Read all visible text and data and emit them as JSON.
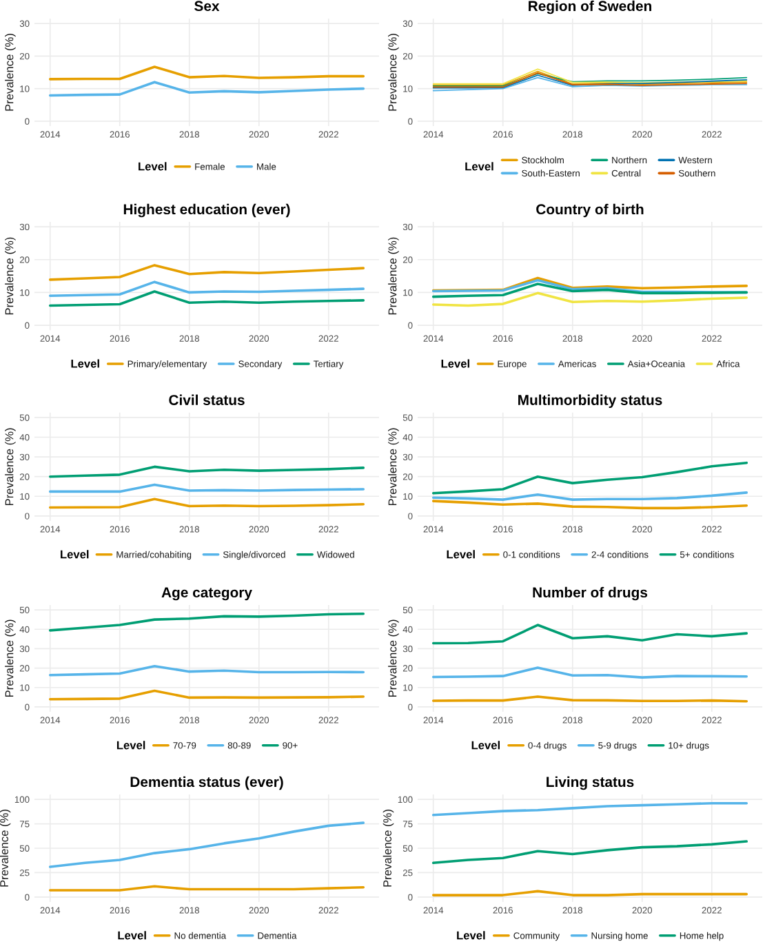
{
  "chart_data": [
    {
      "type": "line",
      "title": "Sex",
      "ylabel": "Prevalence (%)",
      "legend_title": "Level",
      "legend": "bottom",
      "grid": true,
      "x": [
        2014,
        2015,
        2016,
        2017,
        2018,
        2019,
        2020,
        2021,
        2022,
        2023
      ],
      "xlim": [
        2013.55,
        2023.45
      ],
      "xticks": [
        2014,
        2016,
        2018,
        2020,
        2022
      ],
      "ylim": [
        -1.5,
        31.5
      ],
      "yticks": [
        0,
        10,
        20,
        30
      ],
      "series": [
        {
          "name": "Female",
          "color": "#E69F00",
          "values": [
            12.9,
            13.0,
            13.0,
            16.7,
            13.5,
            13.9,
            13.3,
            13.5,
            13.8,
            13.8
          ]
        },
        {
          "name": "Male",
          "color": "#56B4E9",
          "values": [
            7.9,
            8.1,
            8.2,
            12.0,
            8.8,
            9.2,
            8.9,
            9.3,
            9.7,
            10.0
          ]
        }
      ]
    },
    {
      "type": "line",
      "title": "Region of Sweden",
      "ylabel": "Prevalence (%)",
      "legend_title": "Level",
      "legend": "bottom",
      "grid": true,
      "x": [
        2014,
        2015,
        2016,
        2017,
        2018,
        2019,
        2020,
        2021,
        2022,
        2023
      ],
      "xlim": [
        2013.55,
        2023.45
      ],
      "xticks": [
        2014,
        2016,
        2018,
        2020,
        2022
      ],
      "ylim": [
        -1.5,
        31.5
      ],
      "yticks": [
        0,
        10,
        20,
        30
      ],
      "series": [
        {
          "name": "Stockholm",
          "color": "#E69F00",
          "values": [
            11.1,
            11.1,
            11.1,
            15.3,
            11.4,
            11.7,
            11.4,
            11.6,
            11.8,
            12.0
          ]
        },
        {
          "name": "South-Eastern",
          "color": "#56B4E9",
          "values": [
            9.4,
            9.7,
            10.0,
            13.4,
            10.6,
            11.0,
            10.8,
            11.0,
            11.2,
            11.2
          ]
        },
        {
          "name": "Northern",
          "color": "#009E73",
          "values": [
            10.8,
            10.8,
            10.8,
            14.6,
            12.1,
            12.4,
            12.4,
            12.6,
            12.9,
            13.4
          ]
        },
        {
          "name": "Central",
          "color": "#F0E442",
          "values": [
            11.5,
            11.5,
            11.5,
            16.0,
            11.9,
            12.0,
            11.8,
            12.0,
            12.2,
            12.4
          ]
        },
        {
          "name": "Western",
          "color": "#0072B2",
          "values": [
            10.2,
            10.2,
            10.3,
            14.1,
            11.0,
            11.5,
            11.6,
            11.9,
            12.3,
            12.7
          ]
        },
        {
          "name": "Southern",
          "color": "#D55E00",
          "values": [
            10.5,
            10.5,
            10.5,
            14.8,
            11.2,
            11.3,
            11.0,
            11.2,
            11.4,
            11.6
          ]
        }
      ]
    },
    {
      "type": "line",
      "title": "Highest education (ever)",
      "ylabel": "Prevalence (%)",
      "legend_title": "Level",
      "legend": "bottom",
      "grid": true,
      "x": [
        2014,
        2015,
        2016,
        2017,
        2018,
        2019,
        2020,
        2021,
        2022,
        2023
      ],
      "xlim": [
        2013.55,
        2023.45
      ],
      "xticks": [
        2014,
        2016,
        2018,
        2020,
        2022
      ],
      "ylim": [
        -1.5,
        31.5
      ],
      "yticks": [
        0,
        10,
        20,
        30
      ],
      "series": [
        {
          "name": "Primary/elementary",
          "color": "#E69F00",
          "values": [
            13.9,
            14.3,
            14.7,
            18.3,
            15.6,
            16.2,
            15.9,
            16.4,
            16.9,
            17.4
          ]
        },
        {
          "name": "Secondary",
          "color": "#56B4E9",
          "values": [
            9.0,
            9.2,
            9.4,
            13.2,
            10.0,
            10.3,
            10.2,
            10.5,
            10.8,
            11.1
          ]
        },
        {
          "name": "Tertiary",
          "color": "#009E73",
          "values": [
            6.0,
            6.2,
            6.4,
            10.3,
            6.9,
            7.2,
            6.9,
            7.2,
            7.4,
            7.6
          ]
        }
      ]
    },
    {
      "type": "line",
      "title": "Country of birth",
      "ylabel": "Prevalence (%)",
      "legend_title": "Level",
      "legend": "bottom",
      "grid": true,
      "x": [
        2014,
        2015,
        2016,
        2017,
        2018,
        2019,
        2020,
        2021,
        2022,
        2023
      ],
      "xlim": [
        2013.55,
        2023.45
      ],
      "xticks": [
        2014,
        2016,
        2018,
        2020,
        2022
      ],
      "ylim": [
        -1.5,
        31.5
      ],
      "yticks": [
        0,
        10,
        20,
        30
      ],
      "series": [
        {
          "name": "Europe",
          "color": "#E69F00",
          "values": [
            10.6,
            10.7,
            10.8,
            14.4,
            11.4,
            11.8,
            11.3,
            11.5,
            11.8,
            12.0
          ]
        },
        {
          "name": "Americas",
          "color": "#56B4E9",
          "values": [
            10.4,
            10.5,
            10.6,
            13.7,
            11.0,
            11.3,
            10.2,
            10.2,
            10.1,
            10.0
          ]
        },
        {
          "name": "Asia+Oceania",
          "color": "#009E73",
          "values": [
            8.7,
            9.0,
            9.2,
            12.6,
            10.4,
            10.8,
            9.8,
            9.8,
            9.9,
            10.0
          ]
        },
        {
          "name": "Africa",
          "color": "#F0E442",
          "values": [
            6.3,
            6.0,
            6.5,
            9.8,
            7.1,
            7.4,
            7.2,
            7.6,
            8.1,
            8.4
          ]
        }
      ]
    },
    {
      "type": "line",
      "title": "Civil status",
      "ylabel": "Prevalence (%)",
      "legend_title": "Level",
      "legend": "bottom",
      "grid": true,
      "x": [
        2014,
        2015,
        2016,
        2017,
        2018,
        2019,
        2020,
        2021,
        2022,
        2023
      ],
      "xlim": [
        2013.55,
        2023.45
      ],
      "xticks": [
        2014,
        2016,
        2018,
        2020,
        2022
      ],
      "ylim": [
        -2.5,
        52.5
      ],
      "yticks": [
        0,
        10,
        20,
        30,
        40,
        50
      ],
      "series": [
        {
          "name": "Married/cohabiting",
          "color": "#E69F00",
          "values": [
            4.3,
            4.4,
            4.5,
            8.6,
            5.0,
            5.3,
            5.0,
            5.2,
            5.5,
            6.0
          ]
        },
        {
          "name": "Single/divorced",
          "color": "#56B4E9",
          "values": [
            12.4,
            12.4,
            12.4,
            15.9,
            12.9,
            13.1,
            12.9,
            13.2,
            13.4,
            13.6
          ]
        },
        {
          "name": "Widowed",
          "color": "#009E73",
          "values": [
            20.0,
            20.5,
            21.0,
            25.0,
            22.7,
            23.5,
            23.0,
            23.4,
            23.8,
            24.5
          ]
        }
      ]
    },
    {
      "type": "line",
      "title": "Multimorbidity status",
      "ylabel": "Prevalence (%)",
      "legend_title": "Level",
      "legend": "bottom",
      "grid": true,
      "x": [
        2014,
        2015,
        2016,
        2017,
        2018,
        2019,
        2020,
        2021,
        2022,
        2023
      ],
      "xlim": [
        2013.55,
        2023.45
      ],
      "xticks": [
        2014,
        2016,
        2018,
        2020,
        2022
      ],
      "ylim": [
        -2.5,
        52.5
      ],
      "yticks": [
        0,
        10,
        20,
        30,
        40,
        50
      ],
      "series": [
        {
          "name": "0-1 conditions",
          "color": "#E69F00",
          "values": [
            7.6,
            6.8,
            5.8,
            6.3,
            4.8,
            4.6,
            4.0,
            4.0,
            4.5,
            5.3
          ]
        },
        {
          "name": "2-4 conditions",
          "color": "#56B4E9",
          "values": [
            9.3,
            8.9,
            8.3,
            10.9,
            8.3,
            8.6,
            8.6,
            9.1,
            10.3,
            11.9
          ]
        },
        {
          "name": "5+ conditions",
          "color": "#009E73",
          "values": [
            11.6,
            12.5,
            13.6,
            20.0,
            16.7,
            18.4,
            19.7,
            22.3,
            25.2,
            27.0
          ]
        }
      ]
    },
    {
      "type": "line",
      "title": "Age category",
      "ylabel": "Prevalence (%)",
      "legend_title": "Level",
      "legend": "bottom",
      "grid": true,
      "x": [
        2014,
        2015,
        2016,
        2017,
        2018,
        2019,
        2020,
        2021,
        2022,
        2023
      ],
      "xlim": [
        2013.55,
        2023.45
      ],
      "xticks": [
        2014,
        2016,
        2018,
        2020,
        2022
      ],
      "ylim": [
        -2.5,
        52.5
      ],
      "yticks": [
        0,
        10,
        20,
        30,
        40,
        50
      ],
      "series": [
        {
          "name": "70-79",
          "color": "#E69F00",
          "values": [
            4.0,
            4.1,
            4.3,
            8.3,
            4.8,
            4.9,
            4.8,
            4.9,
            5.0,
            5.3
          ]
        },
        {
          "name": "80-89",
          "color": "#56B4E9",
          "values": [
            16.4,
            16.8,
            17.2,
            21.0,
            18.2,
            18.7,
            17.9,
            17.9,
            18.0,
            17.9
          ]
        },
        {
          "name": "90+",
          "color": "#009E73",
          "values": [
            39.4,
            40.8,
            42.2,
            45.0,
            45.5,
            46.7,
            46.5,
            47.0,
            47.7,
            48.0
          ]
        }
      ]
    },
    {
      "type": "line",
      "title": "Number of drugs",
      "ylabel": "Prevalence (%)",
      "legend_title": "Level",
      "legend": "bottom",
      "grid": true,
      "x": [
        2014,
        2015,
        2016,
        2017,
        2018,
        2019,
        2020,
        2021,
        2022,
        2023
      ],
      "xlim": [
        2013.55,
        2023.45
      ],
      "xticks": [
        2014,
        2016,
        2018,
        2020,
        2022
      ],
      "ylim": [
        -2.5,
        52.5
      ],
      "yticks": [
        0,
        10,
        20,
        30,
        40,
        50
      ],
      "series": [
        {
          "name": "0-4 drugs",
          "color": "#E69F00",
          "values": [
            3.2,
            3.3,
            3.3,
            5.3,
            3.5,
            3.4,
            3.1,
            3.1,
            3.3,
            2.9
          ]
        },
        {
          "name": "5-9 drugs",
          "color": "#56B4E9",
          "values": [
            15.4,
            15.6,
            15.9,
            20.2,
            16.2,
            16.4,
            15.2,
            15.9,
            15.8,
            15.7
          ]
        },
        {
          "name": "10+ drugs",
          "color": "#009E73",
          "values": [
            32.8,
            32.9,
            33.8,
            42.2,
            35.4,
            36.4,
            34.3,
            37.4,
            36.4,
            37.9
          ]
        }
      ]
    },
    {
      "type": "line",
      "title": "Dementia status (ever)",
      "ylabel": "Prevalence (%)",
      "legend_title": "Level",
      "legend": "bottom",
      "grid": true,
      "x": [
        2014,
        2015,
        2016,
        2017,
        2018,
        2019,
        2020,
        2021,
        2022,
        2023
      ],
      "xlim": [
        2013.55,
        2023.45
      ],
      "xticks": [
        2014,
        2016,
        2018,
        2020,
        2022
      ],
      "ylim": [
        -5,
        105
      ],
      "yticks": [
        0,
        25,
        50,
        75,
        100
      ],
      "series": [
        {
          "name": "No dementia",
          "color": "#E69F00",
          "values": [
            7,
            7,
            7,
            11,
            8,
            8,
            8,
            8,
            9,
            10
          ]
        },
        {
          "name": "Dementia",
          "color": "#56B4E9",
          "values": [
            31,
            35,
            38,
            45,
            49,
            55,
            60,
            67,
            73,
            76
          ]
        }
      ]
    },
    {
      "type": "line",
      "title": "Living status",
      "ylabel": "Prevalence (%)",
      "legend_title": "Level",
      "legend": "bottom",
      "grid": true,
      "x": [
        2014,
        2015,
        2016,
        2017,
        2018,
        2019,
        2020,
        2021,
        2022,
        2023
      ],
      "xlim": [
        2013.55,
        2023.45
      ],
      "xticks": [
        2014,
        2016,
        2018,
        2020,
        2022
      ],
      "ylim": [
        -5,
        105
      ],
      "yticks": [
        0,
        25,
        50,
        75,
        100
      ],
      "series": [
        {
          "name": "Community",
          "color": "#E69F00",
          "values": [
            2,
            2,
            2,
            6,
            2,
            2,
            3,
            3,
            3,
            3
          ]
        },
        {
          "name": "Nursing home",
          "color": "#56B4E9",
          "values": [
            84,
            86,
            88,
            89,
            91,
            93,
            94,
            95,
            96,
            96
          ]
        },
        {
          "name": "Home help",
          "color": "#009E73",
          "values": [
            35,
            38,
            40,
            47,
            44,
            48,
            51,
            52,
            54,
            57
          ]
        }
      ]
    }
  ]
}
